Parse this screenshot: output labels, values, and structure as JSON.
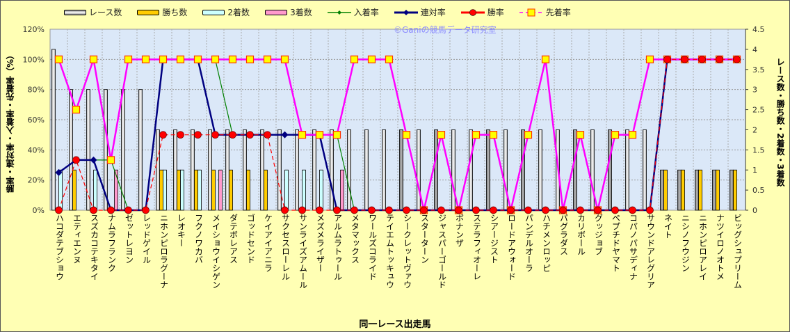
{
  "chart_data": {
    "type": "bar+line",
    "xlabel": "同一レース出走馬",
    "ylabel_left": "勝率・連対率・入着率・先着率（%）",
    "ylabel_right": "レース数・勝ち数・2着数・3着数",
    "watermark": "©Ganiの競馬データ研究室",
    "ylim_left": [
      0,
      120
    ],
    "ylim_right": [
      0,
      4.5
    ],
    "left_ticks": [
      "0%",
      "20%",
      "40%",
      "60%",
      "80%",
      "100%",
      "120%"
    ],
    "right_ticks": [
      "0",
      "0.5",
      "1",
      "1.5",
      "2",
      "2.5",
      "3",
      "3.5",
      "4",
      "4.5"
    ],
    "legend_placement": "top",
    "categories": [
      "ハコダテブショウ",
      "エティエンヌ",
      "スズカコテキタイ",
      "ナムラフランク",
      "ゼットレヨン",
      "レッドゲイル",
      "ニホンピロラグーナ",
      "レオキー",
      "フクノワカバ",
      "メイショウイシゲン",
      "ダテボレアス",
      "ゴッドセンド",
      "ケイアイアニラ",
      "サクセスローレル",
      "サンライズアムール",
      "メズメライザー",
      "アルムラトゥール",
      "メタマックス",
      "ワールズコライド",
      "テイエムトッキュウ",
      "シークレットヴァウ",
      "スターターン",
      "ジャスパーゴールド",
      "ボナンザ",
      "ステラフィオーレ",
      "シアージスト",
      "ロードアウォード",
      "パンデルオーラ",
      "ハチメンロッピ",
      "パグラダス",
      "カリボール",
      "グッジョブ",
      "ペプチドヤマト",
      "コパノパサディナ",
      "サウンドアレグリア",
      "ネイト",
      "ニシノフウジン",
      "ニホンピロアレイ",
      "ナツイロノオトメ",
      "ビッグシュプリーム"
    ],
    "bar_series": [
      {
        "name": "レース数",
        "axis": "right",
        "color": "#ffffff",
        "values": [
          4,
          3,
          3,
          3,
          3,
          3,
          2,
          2,
          2,
          2,
          2,
          2,
          2,
          2,
          2,
          2,
          2,
          2,
          2,
          2,
          2,
          2,
          2,
          2,
          2,
          2,
          2,
          2,
          2,
          2,
          2,
          2,
          2,
          2,
          2,
          1,
          1,
          1,
          1,
          1
        ]
      },
      {
        "name": "勝ち数",
        "axis": "right",
        "color": "#ffcc00",
        "values": [
          0,
          1,
          0,
          0,
          0,
          0,
          1,
          1,
          1,
          1,
          1,
          1,
          1,
          0,
          0,
          0,
          0,
          0,
          0,
          0,
          0,
          0,
          0,
          0,
          0,
          0,
          0,
          0,
          0,
          0,
          0,
          0,
          0,
          0,
          0,
          1,
          1,
          1,
          1,
          1
        ]
      },
      {
        "name": "2着数",
        "axis": "right",
        "color": "#ccffff",
        "values": [
          1,
          0,
          1,
          0,
          0,
          0,
          1,
          1,
          1,
          0,
          0,
          0,
          0,
          1,
          1,
          1,
          0,
          0,
          0,
          0,
          0,
          0,
          0,
          0,
          0,
          0,
          0,
          0,
          0,
          0,
          0,
          0,
          0,
          0,
          0,
          0,
          0,
          0,
          0,
          0
        ]
      },
      {
        "name": "3着数",
        "axis": "right",
        "color": "#ff99cc",
        "values": [
          0,
          0,
          0,
          1,
          0,
          0,
          0,
          0,
          0,
          1,
          0,
          0,
          0,
          0,
          0,
          0,
          1,
          0,
          0,
          0,
          0,
          0,
          0,
          0,
          0,
          0,
          0,
          0,
          0,
          0,
          0,
          0,
          0,
          0,
          0,
          0,
          0,
          0,
          0,
          0
        ]
      }
    ],
    "line_series": [
      {
        "name": "入着率",
        "axis": "left",
        "color": "#008000",
        "values": [
          25,
          33.3,
          33.3,
          33.3,
          0,
          0,
          100,
          100,
          100,
          100,
          50,
          50,
          50,
          50,
          50,
          50,
          50,
          0,
          0,
          0,
          0,
          0,
          0,
          0,
          0,
          0,
          0,
          0,
          0,
          0,
          0,
          0,
          0,
          0,
          0,
          100,
          100,
          100,
          100,
          100
        ]
      },
      {
        "name": "連対率",
        "axis": "left",
        "color": "#000080",
        "values": [
          25,
          33.3,
          33.3,
          0,
          0,
          0,
          100,
          100,
          100,
          50,
          50,
          50,
          50,
          50,
          50,
          50,
          0,
          0,
          0,
          0,
          0,
          0,
          0,
          0,
          0,
          0,
          0,
          0,
          0,
          0,
          0,
          0,
          0,
          0,
          0,
          100,
          100,
          100,
          100,
          100
        ]
      },
      {
        "name": "勝率",
        "axis": "left",
        "color": "#ff0000",
        "values": [
          0,
          33.3,
          0,
          0,
          0,
          0,
          50,
          50,
          50,
          50,
          50,
          50,
          50,
          0,
          0,
          0,
          0,
          0,
          0,
          0,
          0,
          0,
          0,
          0,
          0,
          0,
          0,
          0,
          0,
          0,
          0,
          0,
          0,
          0,
          0,
          100,
          100,
          100,
          100,
          100
        ]
      },
      {
        "name": "先着率",
        "axis": "left",
        "color": "#ff00ff",
        "values": [
          100,
          66.7,
          100,
          33.3,
          100,
          100,
          100,
          100,
          100,
          100,
          100,
          100,
          100,
          100,
          50,
          50,
          50,
          100,
          100,
          100,
          50,
          0,
          50,
          0,
          50,
          50,
          0,
          50,
          100,
          0,
          50,
          0,
          50,
          50,
          100,
          100,
          100,
          100,
          100,
          100
        ]
      }
    ]
  }
}
